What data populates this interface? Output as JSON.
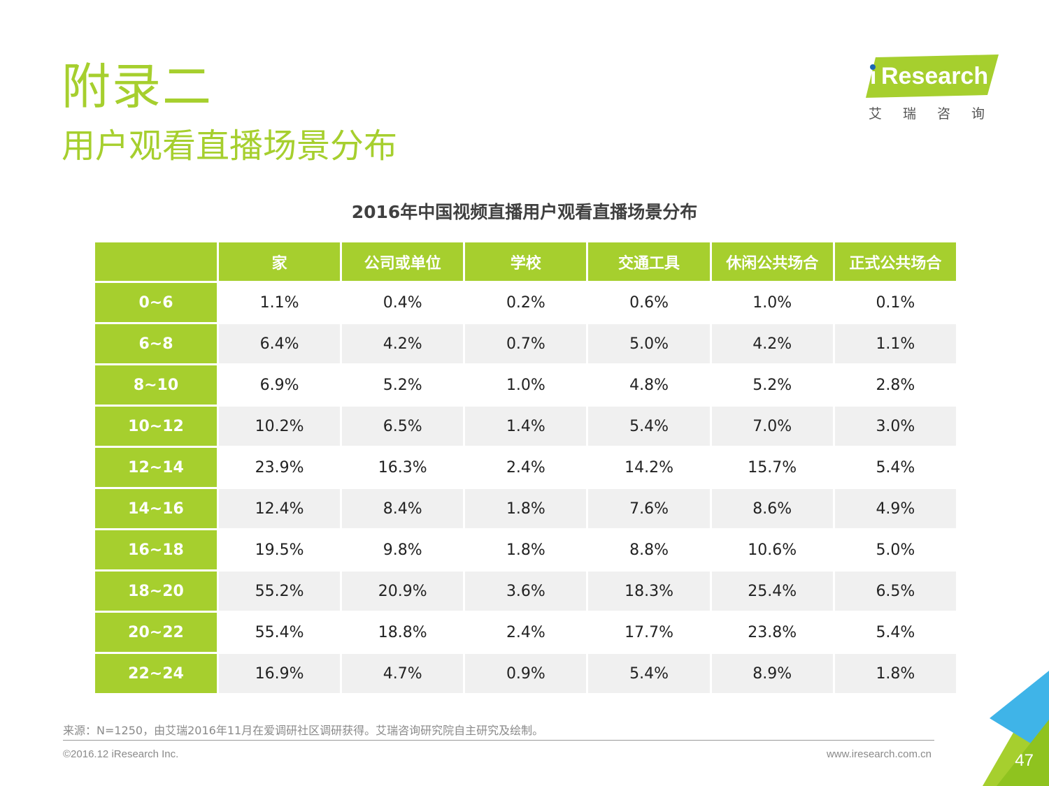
{
  "header": {
    "section_title": "附录二",
    "section_subtitle": "用户观看直播场景分布"
  },
  "logo": {
    "brand_prefix": "i",
    "brand_text": "Research",
    "brand_cn": "艾瑞咨询",
    "colors": {
      "banner": "#a6cf2e",
      "dot": "#1a66b3"
    }
  },
  "table": {
    "title": "2016年中国视频直播用户观看直播场景分布",
    "columns": [
      "",
      "家",
      "公司或单位",
      "学校",
      "交通工具",
      "休闲公共场合",
      "正式公共场合"
    ],
    "rows": [
      {
        "label": "0~6",
        "values": [
          "1.1%",
          "0.4%",
          "0.2%",
          "0.6%",
          "1.0%",
          "0.1%"
        ]
      },
      {
        "label": "6~8",
        "values": [
          "6.4%",
          "4.2%",
          "0.7%",
          "5.0%",
          "4.2%",
          "1.1%"
        ]
      },
      {
        "label": "8~10",
        "values": [
          "6.9%",
          "5.2%",
          "1.0%",
          "4.8%",
          "5.2%",
          "2.8%"
        ]
      },
      {
        "label": "10~12",
        "values": [
          "10.2%",
          "6.5%",
          "1.4%",
          "5.4%",
          "7.0%",
          "3.0%"
        ]
      },
      {
        "label": "12~14",
        "values": [
          "23.9%",
          "16.3%",
          "2.4%",
          "14.2%",
          "15.7%",
          "5.4%"
        ]
      },
      {
        "label": "14~16",
        "values": [
          "12.4%",
          "8.4%",
          "1.8%",
          "7.6%",
          "8.6%",
          "4.9%"
        ]
      },
      {
        "label": "16~18",
        "values": [
          "19.5%",
          "9.8%",
          "1.8%",
          "8.8%",
          "10.6%",
          "5.0%"
        ]
      },
      {
        "label": "18~20",
        "values": [
          "55.2%",
          "20.9%",
          "3.6%",
          "18.3%",
          "25.4%",
          "6.5%"
        ]
      },
      {
        "label": "20~22",
        "values": [
          "55.4%",
          "18.8%",
          "2.4%",
          "17.7%",
          "23.8%",
          "5.4%"
        ]
      },
      {
        "label": "22~24",
        "values": [
          "16.9%",
          "4.7%",
          "0.9%",
          "5.4%",
          "8.9%",
          "1.8%"
        ]
      }
    ]
  },
  "footer": {
    "source": "来源：N=1250，由艾瑞2016年11月在爱调研社区调研获得。艾瑞咨询研究院自主研究及绘制。",
    "copyright": "©2016.12 iResearch Inc.",
    "website": "www.iresearch.com.cn",
    "page_number": "47"
  },
  "colors": {
    "accent": "#a6cf2e",
    "zebra": "#f0f0f0",
    "corner_blue": "#3fb4e8",
    "corner_green": "#a6cf2e"
  }
}
